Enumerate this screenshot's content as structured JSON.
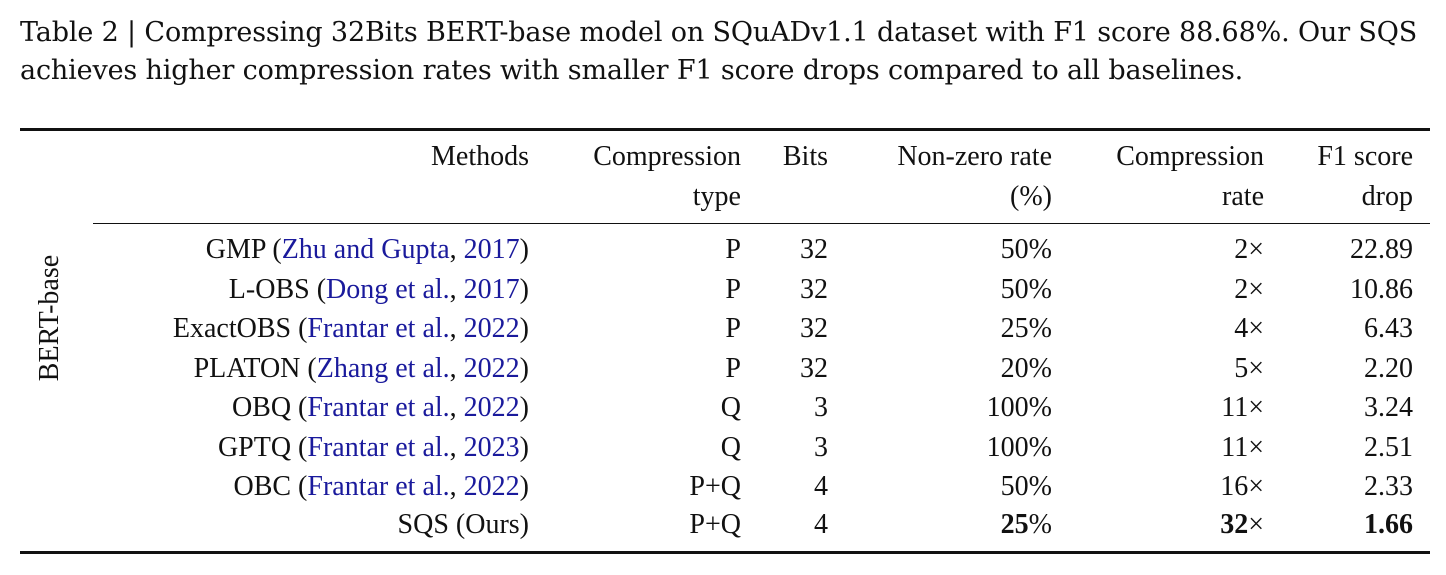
{
  "caption": "Table 2 | Compressing 32Bits BERT-base model on SQuADv1.1 dataset with F1 score 88.68%. Our SQS achieves higher compression rates with smaller F1 score drops compared to all baselines.",
  "side_label": "BERT-base",
  "headers": {
    "methods": "Methods",
    "ctype_1": "Compression",
    "ctype_2": "type",
    "bits": "Bits",
    "nz_1": "Non-zero rate",
    "nz_2": "(%)",
    "cr_1": "Compression",
    "cr_2": "rate",
    "f1_1": "F1 score",
    "f1_2": "drop"
  },
  "rows": [
    {
      "name": "GMP (",
      "cite": "Zhu and Gupta",
      "sep": ", ",
      "year": "2017",
      "close": ")",
      "ctype": "P",
      "bits": "32",
      "nz": "50%",
      "cr": "2×",
      "f1": "22.89"
    },
    {
      "name": "L-OBS (",
      "cite": "Dong et al.",
      "sep": ", ",
      "year": "2017",
      "close": ")",
      "ctype": "P",
      "bits": "32",
      "nz": "50%",
      "cr": "2×",
      "f1": "10.86"
    },
    {
      "name": "ExactOBS (",
      "cite": "Frantar et al.",
      "sep": ", ",
      "year": "2022",
      "close": ")",
      "ctype": "P",
      "bits": "32",
      "nz": "25%",
      "cr": "4×",
      "f1": "6.43"
    },
    {
      "name": "PLATON (",
      "cite": "Zhang et al.",
      "sep": ", ",
      "year": "2022",
      "close": ")",
      "ctype": "P",
      "bits": "32",
      "nz": "20%",
      "cr": "5×",
      "f1": "2.20"
    },
    {
      "name": "OBQ (",
      "cite": "Frantar et al.",
      "sep": ", ",
      "year": "2022",
      "close": ")",
      "ctype": "Q",
      "bits": "3",
      "nz": "100%",
      "cr": "11×",
      "f1": "3.24"
    },
    {
      "name": "GPTQ (",
      "cite": "Frantar et al.",
      "sep": ", ",
      "year": "2023",
      "close": ")",
      "ctype": "Q",
      "bits": "3",
      "nz": "100%",
      "cr": "11×",
      "f1": "2.51"
    },
    {
      "name": "OBC (",
      "cite": "Frantar et al.",
      "sep": ", ",
      "year": "2022",
      "close": ")",
      "ctype": "P+Q",
      "bits": "4",
      "nz": "50%",
      "cr": "16×",
      "f1": "2.33"
    }
  ],
  "ours": {
    "name": "SQS (Ours)",
    "ctype": "P+Q",
    "bits": "4",
    "nz_num": "25",
    "nz_pct": "%",
    "cr_num": "32",
    "cr_x": "×",
    "f1": "1.66"
  }
}
